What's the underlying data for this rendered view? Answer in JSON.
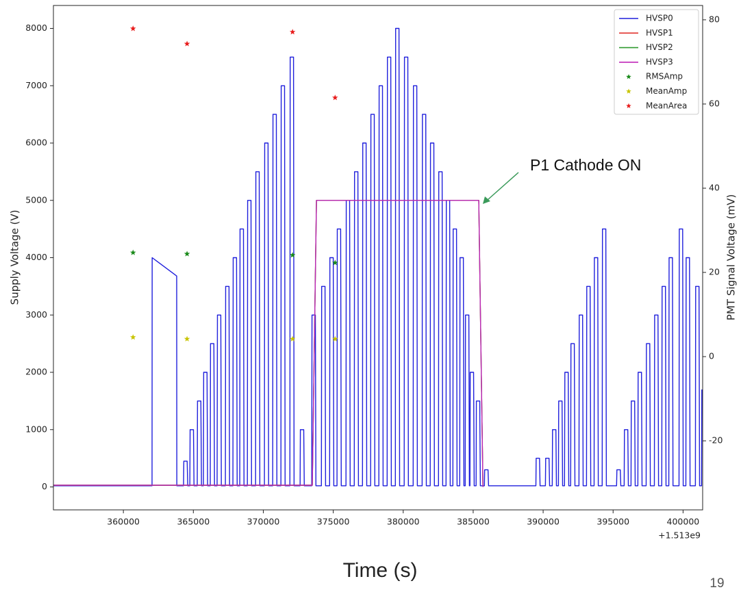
{
  "chart_data": {
    "type": "line",
    "xlabel": "Time (s)",
    "ylabel": "Supply Voltage (V)",
    "y2label": "PMT Signal Voltage (mV)",
    "x_offset_label": "+1.513e9",
    "xlim": [
      355000,
      401400
    ],
    "ylim": [
      -400,
      8400
    ],
    "y2lim": [
      -36.4,
      83.4
    ],
    "xticks": [
      360000,
      365000,
      370000,
      375000,
      380000,
      385000,
      390000,
      395000,
      400000
    ],
    "yticks": [
      0,
      1000,
      2000,
      3000,
      4000,
      5000,
      6000,
      7000,
      8000
    ],
    "y2ticks": [
      -20,
      0,
      20,
      40,
      60,
      80
    ],
    "grid": false,
    "legend": "upper right",
    "annotations": [
      {
        "text": "P1 Cathode ON"
      }
    ],
    "series": [
      {
        "name": "HVSP0",
        "color": "#1f1fdc",
        "mark": "line",
        "x": [
          355000,
          362050,
          362060,
          363810,
          363820,
          364300,
          364320,
          364560,
          364600,
          364750,
          364770,
          365010,
          365050,
          365280,
          365300,
          365540,
          365580,
          365720,
          365740,
          365980,
          366020,
          366210,
          366230,
          366470,
          366510,
          366700,
          366720,
          366960,
          367000,
          367290,
          367310,
          367550,
          367590,
          367830,
          367850,
          368090,
          368130,
          368320,
          368340,
          368580,
          368620,
          368860,
          368880,
          369120,
          369160,
          369450,
          369470,
          369710,
          369750,
          370080,
          370100,
          370340,
          370380,
          370670,
          370690,
          370930,
          370970,
          371260,
          371280,
          371520,
          371560,
          371900,
          371920,
          372160,
          372200,
          372630,
          372650,
          372890,
          372930,
          373460,
          373480,
          373720,
          373760,
          374150,
          374170,
          374410,
          374450,
          374740,
          374760,
          375000,
          375040,
          375270,
          375290,
          375530,
          375570,
          375910,
          375930,
          376170,
          376210,
          376500,
          376520,
          376760,
          376800,
          377090,
          377110,
          377350,
          377390,
          377670,
          377690,
          377930,
          377970,
          378260,
          378280,
          378520,
          378560,
          378850,
          378870,
          379110,
          379150,
          379440,
          379460,
          379700,
          379740,
          380070,
          380090,
          380330,
          380370,
          380710,
          380730,
          380970,
          381010,
          381350,
          381370,
          381610,
          381650,
          381930,
          381950,
          382190,
          382230,
          382520,
          382540,
          382780,
          382820,
          383060,
          383080,
          383320,
          383360,
          383550,
          383570,
          383810,
          383850,
          384040,
          384060,
          384300,
          384340,
          384430,
          384450,
          384690,
          384730,
          384770,
          384790,
          385030,
          385070,
          385210,
          385230,
          385470,
          385510,
          385800,
          385820,
          386060,
          386100,
          389480,
          389500,
          389740,
          389780,
          390160,
          390180,
          390420,
          390460,
          390650,
          390670,
          390910,
          390950,
          391090,
          391110,
          391350,
          391390,
          391530,
          391550,
          391790,
          391830,
          391970,
          391990,
          392230,
          392270,
          392560,
          392580,
          392820,
          392860,
          393100,
          393120,
          393360,
          393400,
          393640,
          393660,
          393900,
          393940,
          394220,
          394240,
          394480,
          394520,
          395250,
          395270,
          395510,
          395550,
          395790,
          395810,
          396050,
          396090,
          396280,
          396300,
          396540,
          396580,
          396770,
          396790,
          397030,
          397070,
          397360,
          397380,
          397620,
          397660,
          397950,
          397970,
          398210,
          398250,
          398480,
          398500,
          398740,
          398780,
          398980,
          399000,
          399240,
          399280,
          399710,
          399730,
          399970,
          400010,
          400200,
          400220,
          400460,
          400500,
          400880,
          400900,
          401140,
          401180,
          401320,
          401340
        ],
        "values": [
          20,
          20,
          4000,
          3680,
          20,
          20,
          450,
          450,
          20,
          20,
          1000,
          1000,
          20,
          20,
          1500,
          1500,
          20,
          20,
          2000,
          2000,
          20,
          20,
          2500,
          2500,
          20,
          20,
          3000,
          3000,
          20,
          20,
          3500,
          3500,
          20,
          20,
          4000,
          4000,
          20,
          20,
          4500,
          4500,
          20,
          20,
          5000,
          5000,
          20,
          20,
          5500,
          5500,
          20,
          20,
          6000,
          6000,
          20,
          20,
          6500,
          6500,
          20,
          20,
          7000,
          7000,
          20,
          20,
          7500,
          7500,
          20,
          20,
          1000,
          1000,
          20,
          20,
          3000,
          3000,
          20,
          20,
          3500,
          3500,
          20,
          20,
          4000,
          4000,
          20,
          20,
          4500,
          4500,
          20,
          20,
          5000,
          5000,
          20,
          20,
          5500,
          5500,
          20,
          20,
          6000,
          6000,
          20,
          20,
          6500,
          6500,
          20,
          20,
          7000,
          7000,
          20,
          20,
          7500,
          7500,
          20,
          20,
          8000,
          8000,
          20,
          20,
          7500,
          7500,
          20,
          20,
          7000,
          7000,
          20,
          20,
          6500,
          6500,
          20,
          20,
          6000,
          6000,
          20,
          20,
          5500,
          5500,
          20,
          20,
          5000,
          5000,
          20,
          20,
          4500,
          4500,
          20,
          20,
          4000,
          4000,
          20,
          20,
          3000,
          3000,
          20,
          20,
          2000,
          2000,
          20,
          20,
          1500,
          1500,
          20,
          20,
          300,
          300,
          20,
          20,
          500,
          500,
          20,
          20,
          500,
          500,
          20,
          20,
          1000,
          1000,
          20,
          20,
          1500,
          1500,
          20,
          20,
          2000,
          2000,
          20,
          20,
          2500,
          2500,
          20,
          20,
          3000,
          3000,
          20,
          20,
          3500,
          3500,
          20,
          20,
          4000,
          4000,
          20,
          20,
          4500,
          4500,
          20,
          20,
          300,
          300,
          20,
          20,
          1000,
          1000,
          20,
          20,
          1500,
          1500,
          20,
          20,
          2000,
          2000,
          20,
          20,
          2500,
          2500,
          20,
          20,
          3000,
          3000,
          20,
          20,
          3500,
          3500,
          20,
          20,
          4000,
          4000,
          20,
          20,
          4500,
          4500,
          20,
          20,
          4000,
          4000,
          20,
          20,
          3500,
          3500,
          20,
          20,
          1700
        ]
      },
      {
        "name": "HVSP1",
        "color": "#e0302a",
        "mark": "line",
        "x": [
          355000,
          373500,
          373800,
          385400,
          385700
        ],
        "values": [
          30,
          30,
          5000,
          5000,
          0
        ]
      },
      {
        "name": "HVSP2",
        "color": "#2e9a2e",
        "mark": "line",
        "x": [
          355000,
          373500,
          373800,
          385400,
          385700
        ],
        "values": [
          30,
          30,
          5000,
          5000,
          0
        ]
      },
      {
        "name": "HVSP3",
        "color": "#c026b8",
        "mark": "line",
        "x": [
          355000,
          373500,
          373800,
          385400,
          385700
        ],
        "values": [
          30,
          30,
          5000,
          5000,
          0
        ]
      },
      {
        "name": "RMSAmp",
        "color": "#1a8a1a",
        "mark": "star",
        "axis": "y2",
        "x": [
          360690,
          364550,
          372090,
          375130
        ],
        "values": [
          24.7,
          24.4,
          24.1,
          22.3
        ]
      },
      {
        "name": "MeanAmp",
        "color": "#c8c400",
        "mark": "star",
        "axis": "y2",
        "x": [
          360690,
          364550,
          372090,
          375130
        ],
        "values": [
          4.6,
          4.2,
          4.2,
          4.2
        ]
      },
      {
        "name": "MeanArea",
        "color": "#e81c1c",
        "mark": "star",
        "axis": "y2",
        "x": [
          360690,
          364550,
          372090,
          375130
        ],
        "values": [
          77.9,
          74.3,
          77.1,
          61.5
        ]
      }
    ]
  },
  "slide": {
    "number": "19"
  }
}
